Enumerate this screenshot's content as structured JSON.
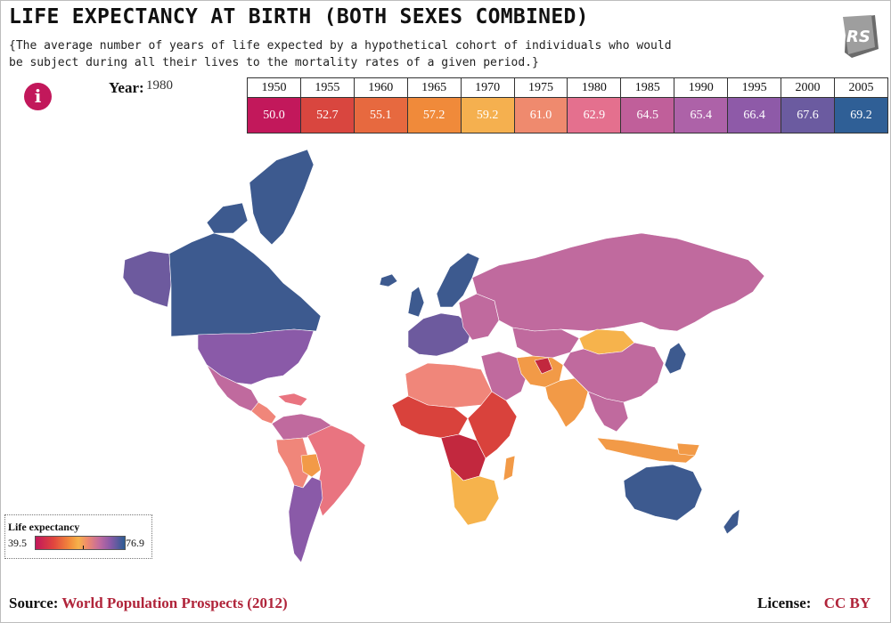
{
  "header": {
    "title": "LIFE EXPECTANCY AT BIRTH (BOTH SEXES COMBINED)",
    "subtitle": "{The average number of years of life expected by a hypothetical cohort of individuals who would be subject during all their lives to the mortality rates of a given period.}",
    "logo_text": "RS"
  },
  "info_icon": {
    "glyph": "i",
    "name": "info-icon",
    "color": "#c2185b"
  },
  "year_selector": {
    "label": "Year:",
    "selected": "1980",
    "years": [
      "1950",
      "1955",
      "1960",
      "1965",
      "1970",
      "1975",
      "1980",
      "1985",
      "1990",
      "1995",
      "2000",
      "2005"
    ],
    "values": [
      "50.0",
      "52.7",
      "55.1",
      "57.2",
      "59.2",
      "61.0",
      "62.9",
      "64.5",
      "65.4",
      "66.4",
      "67.6",
      "69.2"
    ],
    "colors": [
      "#c2185b",
      "#d9463f",
      "#e7693f",
      "#f08a3a",
      "#f5b04f",
      "#ef8a6e",
      "#e4708e",
      "#c05f9a",
      "#ad62a8",
      "#8e5aa8",
      "#6b5ba0",
      "#2f5f96"
    ]
  },
  "legend": {
    "title": "Life expectancy",
    "min": "39.5",
    "max": "76.9"
  },
  "footer": {
    "source_label": "Source:",
    "source_link": "World Population Prospects (2012)",
    "license_label": "License:",
    "license_link": "CC BY"
  },
  "map_colors": {
    "high": "#3d5a8f",
    "high_mid": "#6d5a9e",
    "purple": "#8a5aa8",
    "magenta": "#c06a9e",
    "pink": "#e97480",
    "salmon": "#f0867a",
    "orange": "#f29a47",
    "yellow": "#f6b34c",
    "red": "#d9423c",
    "crimson": "#c2283e"
  }
}
